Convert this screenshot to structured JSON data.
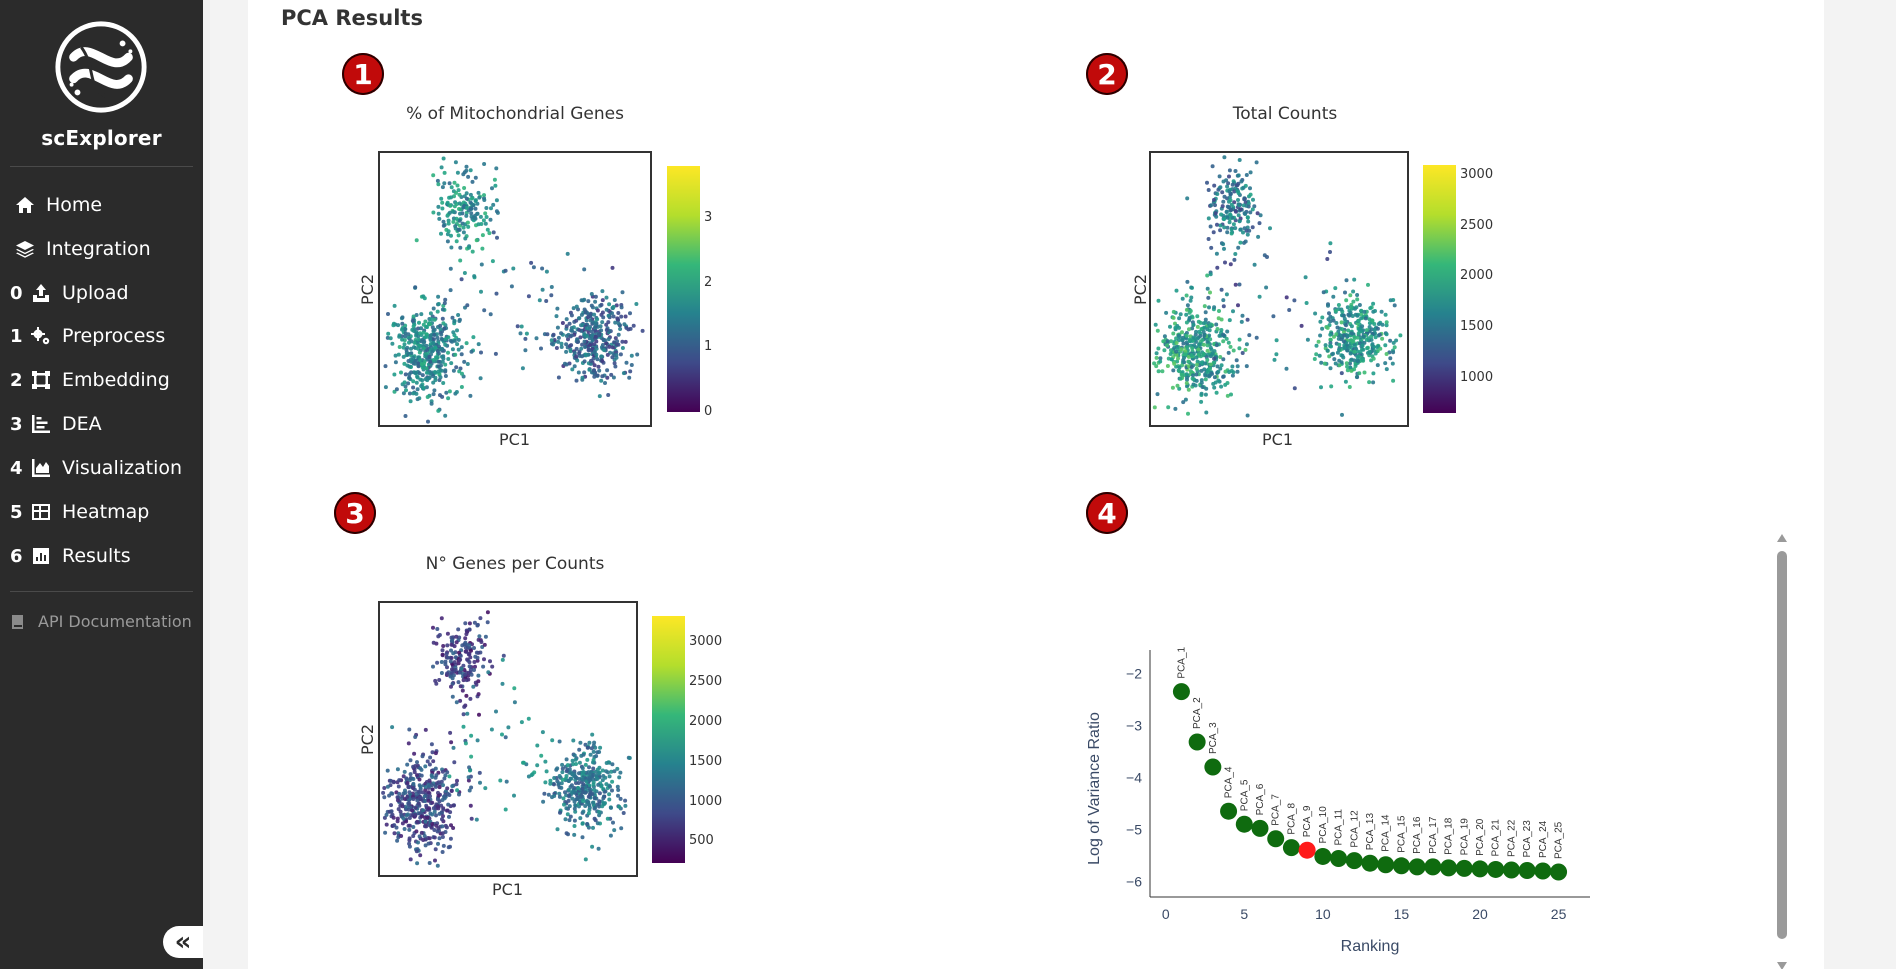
{
  "sidebar": {
    "brand": "scExplorer",
    "nav": [
      {
        "num": "",
        "label": "Home",
        "icon": "home-icon"
      },
      {
        "num": "",
        "label": "Integration",
        "icon": "layers-icon"
      },
      {
        "num": "0",
        "label": "Upload",
        "icon": "upload-icon"
      },
      {
        "num": "1",
        "label": "Preprocess",
        "icon": "gears-icon"
      },
      {
        "num": "2",
        "label": "Embedding",
        "icon": "vector-square-icon"
      },
      {
        "num": "3",
        "label": "DEA",
        "icon": "bar-chart-icon"
      },
      {
        "num": "4",
        "label": "Visualization",
        "icon": "area-chart-icon"
      },
      {
        "num": "5",
        "label": "Heatmap",
        "icon": "grid-icon"
      },
      {
        "num": "6",
        "label": "Results",
        "icon": "chart-square-icon"
      }
    ],
    "api_label": "API Documentation",
    "collapse_glyph": "«"
  },
  "main": {
    "title": "PCA Results",
    "badges": [
      "1",
      "2",
      "3",
      "4"
    ]
  },
  "chart_data": [
    {
      "type": "scatter",
      "title": "% of Mitochondrial Genes",
      "xlabel": "PC1",
      "ylabel": "PC2",
      "colorbar": {
        "ticks": [
          "3",
          "2",
          "1",
          "0"
        ],
        "range": [
          0,
          3.8
        ],
        "colormap": "viridis"
      }
    },
    {
      "type": "scatter",
      "title": "Total Counts",
      "xlabel": "PC1",
      "ylabel": "PC2",
      "colorbar": {
        "ticks": [
          "3000",
          "2500",
          "2000",
          "1500",
          "1000"
        ],
        "range": [
          650,
          3100
        ],
        "colormap": "viridis"
      }
    },
    {
      "type": "scatter",
      "title": "N° Genes per Counts",
      "xlabel": "PC1",
      "ylabel": "PC2",
      "colorbar": {
        "ticks": [
          "3000",
          "2500",
          "2000",
          "1500",
          "1000",
          "500"
        ],
        "range": [
          230,
          3330
        ],
        "colormap": "viridis"
      }
    },
    {
      "type": "scatter",
      "title": "",
      "xlabel": "Ranking",
      "ylabel": "Log of Variance Ratio",
      "xlim": [
        -1,
        27
      ],
      "ylim": [
        -6.3,
        -1.55
      ],
      "xticks": [
        "0",
        "5",
        "10",
        "15",
        "20",
        "25"
      ],
      "yticks": [
        "−2",
        "−3",
        "−4",
        "−5",
        "−6"
      ],
      "x": [
        1,
        2,
        3,
        4,
        5,
        6,
        7,
        8,
        9,
        10,
        11,
        12,
        13,
        14,
        15,
        16,
        17,
        18,
        19,
        20,
        21,
        22,
        23,
        24,
        25
      ],
      "y": [
        -2.35,
        -3.32,
        -3.8,
        -4.65,
        -4.9,
        -4.98,
        -5.18,
        -5.35,
        -5.4,
        -5.52,
        -5.56,
        -5.6,
        -5.65,
        -5.68,
        -5.7,
        -5.72,
        -5.72,
        -5.74,
        -5.75,
        -5.76,
        -5.77,
        -5.78,
        -5.79,
        -5.8,
        -5.82
      ],
      "labels": [
        "PCA_1",
        "PCA_2",
        "PCA_3",
        "PCA_4",
        "PCA_5",
        "PCA_6",
        "PCA_7",
        "PCA_8",
        "PCA_9",
        "PCA_10",
        "PCA_11",
        "PCA_12",
        "PCA_13",
        "PCA_14",
        "PCA_15",
        "PCA_16",
        "PCA_17",
        "PCA_18",
        "PCA_19",
        "PCA_20",
        "PCA_21",
        "PCA_22",
        "PCA_23",
        "PCA_24",
        "PCA_25"
      ],
      "highlight_index": 8,
      "colors": {
        "point": "#0f6b0f",
        "highlight": "#ff1a1a"
      }
    }
  ]
}
